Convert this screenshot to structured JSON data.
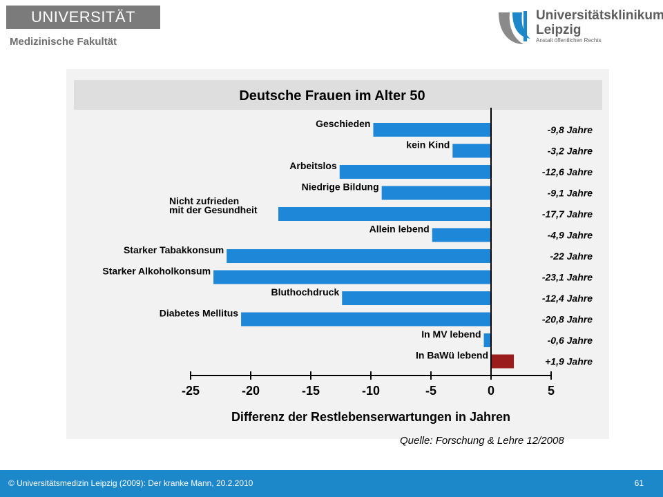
{
  "header": {
    "university": "UNIVERSITÄT LEIPZIG",
    "faculty": "Medizinische Fakultät",
    "clinic_line1": "Universitätsklinikum",
    "clinic_line2": "Leipzig",
    "clinic_line3": "Anstalt öffentlichen Rechts"
  },
  "source": "Quelle: Forschung & Lehre 12/2008",
  "footer": {
    "text": "© Universitätsmedizin Leipzig (2009): Der kranke Mann, 20.2.2010",
    "page": "61"
  },
  "colors": {
    "negative_bar": "#1f87d8",
    "positive_bar": "#9b1c1c",
    "footer_bg": "#1c87c9",
    "title_band": "#dedede"
  },
  "chart_data": {
    "type": "bar",
    "orientation": "horizontal",
    "title": "Deutsche Frauen im Alter 50",
    "xlabel": "Differenz der Restlebenserwartungen in Jahren",
    "xlim": [
      -25,
      5
    ],
    "xticks": [
      "-25",
      "-20",
      "-15",
      "-10",
      "-5",
      "0",
      "5"
    ],
    "xtick_values": [
      -25,
      -20,
      -15,
      -10,
      -5,
      0,
      5
    ],
    "categories": [
      "Geschieden",
      "kein Kind",
      "Arbeitslos",
      "Niedrige Bildung",
      "Nicht zufrieden mit der Gesundheit",
      "Allein lebend",
      "Starker Tabakkonsum",
      "Starker Alkoholkonsum",
      "Bluthochdruck",
      "Diabetes Mellitus",
      "In MV lebend",
      "In BaWü lebend"
    ],
    "category_lines": [
      [
        "Geschieden"
      ],
      [
        "kein Kind"
      ],
      [
        "Arbeitslos"
      ],
      [
        "Niedrige Bildung"
      ],
      [
        "Nicht zufrieden",
        "mit der Gesundheit"
      ],
      [
        "Allein lebend"
      ],
      [
        "Starker Tabakkonsum"
      ],
      [
        "Starker Alkoholkonsum"
      ],
      [
        "Bluthochdruck"
      ],
      [
        "Diabetes Mellitus"
      ],
      [
        "In MV lebend"
      ],
      [
        "In BaWü lebend"
      ]
    ],
    "values": [
      -9.8,
      -3.2,
      -12.6,
      -9.1,
      -17.7,
      -4.9,
      -22,
      -23.1,
      -12.4,
      -20.8,
      -0.6,
      1.9
    ],
    "value_labels": [
      "-9,8 Jahre",
      "-3,2 Jahre",
      "-12,6 Jahre",
      "-9,1 Jahre",
      "-17,7 Jahre",
      "-4,9 Jahre",
      "-22 Jahre",
      "-23,1 Jahre",
      "-12,4 Jahre",
      "-20,8 Jahre",
      "-0,6 Jahre",
      "+1,9 Jahre"
    ],
    "grid": false,
    "legend": "none"
  }
}
